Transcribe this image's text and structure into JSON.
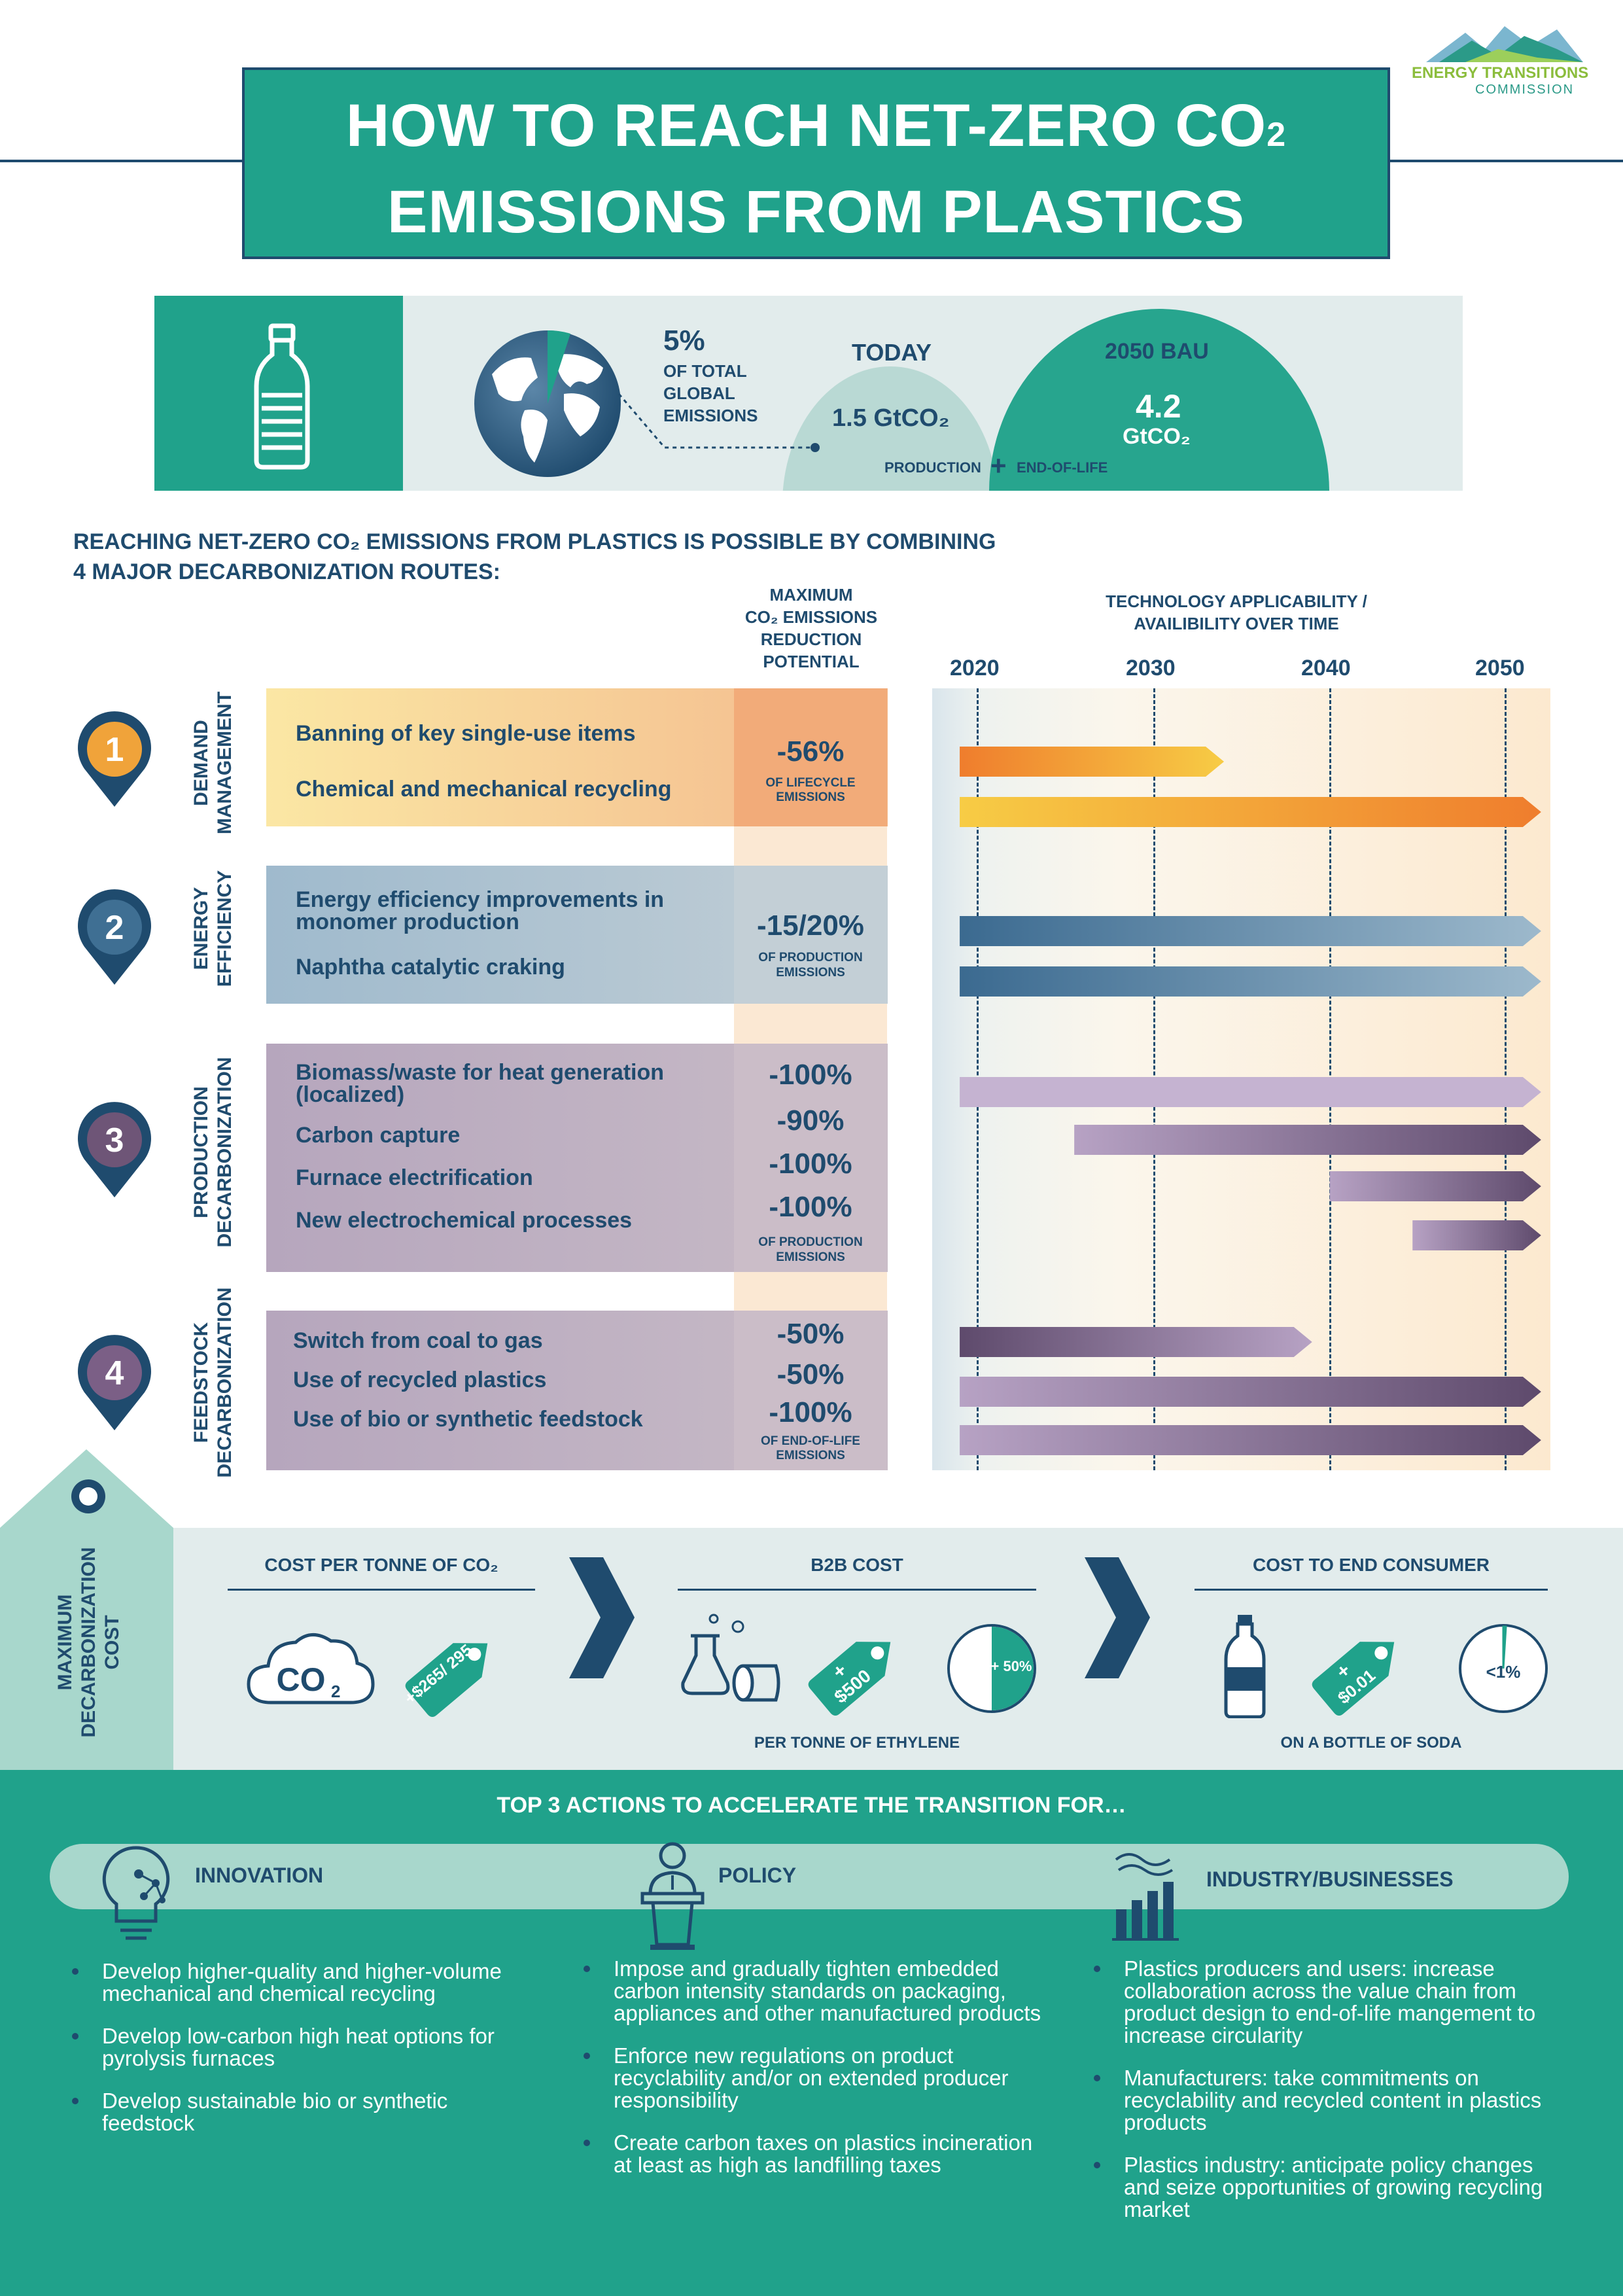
{
  "logo": {
    "line1": "ENERGY TRANSITIONS",
    "line2": "COMMISSION"
  },
  "title": {
    "line1_pre": "HOW TO REACH NET-ZERO CO",
    "line1_sub": "2",
    "line2": "EMISSIONS FROM PLASTICS"
  },
  "banner": {
    "share_pct": "5%",
    "share_lines": [
      "OF TOTAL",
      "GLOBAL",
      "EMISSIONS"
    ],
    "today_label": "TODAY",
    "today_value": "1.5 GtCO₂",
    "bau_label": "2050 BAU",
    "bau_value": "4.2",
    "bau_unit": "GtCO₂",
    "production_label": "PRODUCTION",
    "plus": "+",
    "eol_label": "END-OF-LIFE"
  },
  "section_heading": {
    "line1": "REACHING NET-ZERO CO₂ EMISSIONS FROM PLASTICS IS POSSIBLE BY COMBINING",
    "line2": "4 MAJOR DECARBONIZATION ROUTES:"
  },
  "columns": {
    "max_potential": [
      "MAXIMUM",
      "CO₂ EMISSIONS",
      "REDUCTION",
      "POTENTIAL"
    ],
    "tech": [
      "TECHNOLOGY APPLICABILITY /",
      "AVAILIBILITY OVER TIME"
    ],
    "years": [
      "2020",
      "2030",
      "2040",
      "2050"
    ]
  },
  "routes": [
    {
      "number": "1",
      "label_lines": [
        "DEMAND",
        "MANAGEMENT"
      ],
      "color": "#f0a33a",
      "items": [
        "Banning of key single-use items",
        "Chemical and mechanical recycling"
      ],
      "pct": [
        "-56%"
      ],
      "pct_sub": [
        "OF LIFECYCLE",
        "EMISSIONS"
      ]
    },
    {
      "number": "2",
      "label_lines": [
        "ENERGY",
        "EFFICIENCY"
      ],
      "color": "#3f6f93",
      "items": [
        "Energy efficiency improvements in monomer production",
        "Naphtha catalytic craking"
      ],
      "pct": [
        "-15/20%"
      ],
      "pct_sub": [
        "OF PRODUCTION",
        "EMISSIONS"
      ]
    },
    {
      "number": "3",
      "label_lines": [
        "PRODUCTION",
        "DECARBONIZATION"
      ],
      "color": "#6e5577",
      "items": [
        "Biomass/waste for heat generation (localized)",
        "Carbon capture",
        "Furnace electrification",
        "New electrochemical processes"
      ],
      "pct": [
        "-100%",
        "-90%",
        "-100%",
        "-100%"
      ],
      "pct_sub": [
        "OF PRODUCTION",
        "EMISSIONS"
      ]
    },
    {
      "number": "4",
      "label_lines": [
        "FEEDSTOCK",
        "DECARBONIZATION"
      ],
      "color": "#7b5f86",
      "items": [
        "Switch from coal to gas",
        "Use of recycled plastics",
        "Use of bio or synthetic feedstock"
      ],
      "pct": [
        "-50%",
        "-50%",
        "-100%"
      ],
      "pct_sub": [
        "OF END-OF-LIFE",
        "EMISSIONS"
      ]
    }
  ],
  "timeline_bars": [
    {
      "route": 1,
      "start": 2019,
      "end": 2034,
      "colors": [
        "#ef7d2d",
        "#f7cc45"
      ]
    },
    {
      "route": 1,
      "start": 2019,
      "end": 2052,
      "colors": [
        "#f7cc45",
        "#ef7d2d"
      ]
    },
    {
      "route": 2,
      "start": 2019,
      "end": 2052,
      "colors": [
        "#3b6a90",
        "#9db9cc"
      ]
    },
    {
      "route": 2,
      "start": 2019,
      "end": 2052,
      "colors": [
        "#3b6a90",
        "#9db9cc"
      ]
    },
    {
      "route": 3,
      "start": 2019,
      "end": 2052,
      "colors": [
        "#c5b3d1",
        "#c5b3d1"
      ]
    },
    {
      "route": 3,
      "start": 2025.5,
      "end": 2052,
      "colors": [
        "#b7a2c4",
        "#5e4a6c"
      ]
    },
    {
      "route": 3,
      "start": 2040,
      "end": 2052,
      "colors": [
        "#b7a2c4",
        "#5e4a6c"
      ]
    },
    {
      "route": 3,
      "start": 2044.7,
      "end": 2052,
      "colors": [
        "#b7a2c4",
        "#5e4a6c"
      ]
    },
    {
      "route": 4,
      "start": 2019,
      "end": 2039,
      "colors": [
        "#5e4a6c",
        "#b7a2c4"
      ]
    },
    {
      "route": 4,
      "start": 2019,
      "end": 2052,
      "colors": [
        "#b7a2c4",
        "#5e4a6c"
      ]
    },
    {
      "route": 4,
      "start": 2019,
      "end": 2052,
      "colors": [
        "#b7a2c4",
        "#5e4a6c"
      ]
    }
  ],
  "cost": {
    "side_label": [
      "MAXIMUM",
      "DECARBONIZATION",
      "COST"
    ],
    "per_tonne_head": "COST PER TONNE OF CO₂",
    "co2_icon_text": "CO",
    "co2_icon_sub": "2",
    "per_tonne_value": "+$265/ 295",
    "b2b_head": "B2B COST",
    "b2b_plus": "+",
    "b2b_value": "$500",
    "b2b_pie": "+ 50%",
    "b2b_pie_fraction": 0.5,
    "b2b_note": "PER TONNE OF ETHYLENE",
    "consumer_head": "COST TO END CONSUMER",
    "consumer_plus": "+",
    "consumer_value": "$0.01",
    "consumer_pie": "<1%",
    "consumer_pie_fraction": 0.01,
    "consumer_note": "ON A BOTTLE OF SODA"
  },
  "actions": {
    "heading": "TOP 3 ACTIONS TO ACCELERATE THE TRANSITION FOR…",
    "groups": [
      {
        "title": "INNOVATION",
        "items": [
          "Develop higher-quality and higher-volume mechanical and chemical recycling",
          "Develop low-carbon high heat options for pyrolysis furnaces",
          "Develop sustainable bio or synthetic feedstock"
        ]
      },
      {
        "title": "POLICY",
        "items": [
          "Impose and gradually tighten embedded carbon intensity standards on packaging, appliances and other manufactured products",
          "Enforce new regulations on product recyclability and/or on extended producer responsibility",
          "Create carbon taxes on plastics incineration at least as high as landfilling taxes"
        ]
      },
      {
        "title": "INDUSTRY/BUSINESSES",
        "items": [
          "Plastics producers and users: increase collaboration across the value chain from product design to end-of-life mangement to increase circularity",
          "Manufacturers: take commitments on recyclability and recycled content in plastics products",
          "Plastics industry: anticipate policy changes and seize opportunities of growing recycling market"
        ]
      }
    ]
  },
  "colors": {
    "teal": "#20a28b",
    "navy": "#1f4b6e",
    "mint": "#a8d7cc",
    "orange": "#f0a33a"
  }
}
